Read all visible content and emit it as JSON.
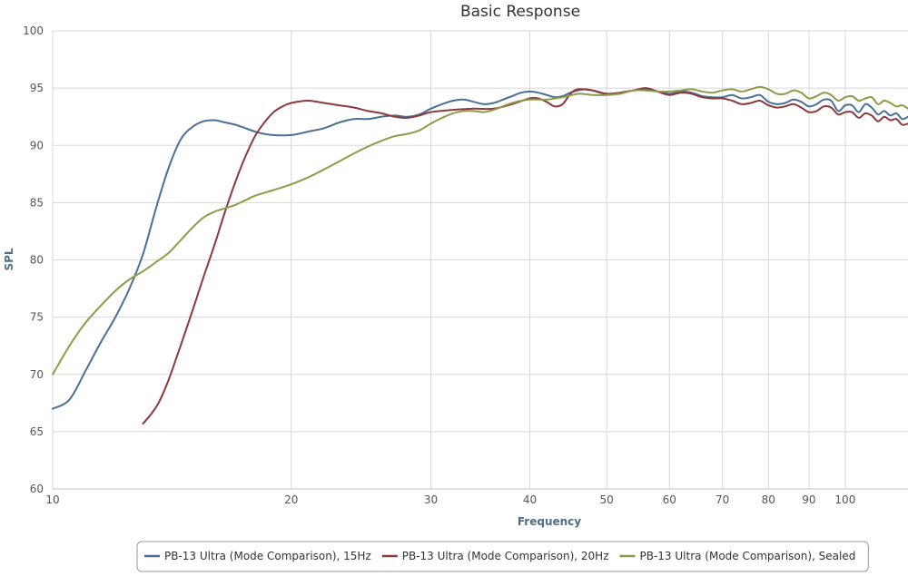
{
  "chart_data": {
    "type": "line",
    "title": "Basic Response",
    "xlabel": "Frequency",
    "ylabel": "SPL",
    "x_scale": "log",
    "xlim": [
      10,
      120
    ],
    "ylim": [
      60,
      100
    ],
    "x_ticks": [
      10,
      20,
      30,
      40,
      50,
      60,
      70,
      80,
      90,
      100
    ],
    "y_ticks": [
      60,
      65,
      70,
      75,
      80,
      85,
      90,
      95,
      100
    ],
    "grid": true,
    "legend_position": "bottom-right",
    "series": [
      {
        "name": "PB-13 Ultra (Mode Comparison), 15Hz",
        "color": "#4a6f94",
        "points": [
          [
            10,
            67.0
          ],
          [
            10.5,
            67.8
          ],
          [
            11,
            70.3
          ],
          [
            11.5,
            72.8
          ],
          [
            12,
            75.0
          ],
          [
            12.5,
            77.5
          ],
          [
            13,
            80.5
          ],
          [
            13.5,
            84.5
          ],
          [
            14,
            88.0
          ],
          [
            14.5,
            90.5
          ],
          [
            15,
            91.6
          ],
          [
            15.5,
            92.1
          ],
          [
            16,
            92.2
          ],
          [
            16.5,
            92.0
          ],
          [
            17,
            91.8
          ],
          [
            17.5,
            91.5
          ],
          [
            18,
            91.2
          ],
          [
            18.5,
            91.0
          ],
          [
            19,
            90.9
          ],
          [
            20,
            90.9
          ],
          [
            21,
            91.2
          ],
          [
            22,
            91.5
          ],
          [
            23,
            92.0
          ],
          [
            24,
            92.3
          ],
          [
            25,
            92.3
          ],
          [
            26,
            92.5
          ],
          [
            27,
            92.6
          ],
          [
            28,
            92.5
          ],
          [
            29,
            92.7
          ],
          [
            30,
            93.2
          ],
          [
            31,
            93.6
          ],
          [
            32,
            93.9
          ],
          [
            33,
            94.0
          ],
          [
            34,
            93.8
          ],
          [
            35,
            93.6
          ],
          [
            36,
            93.7
          ],
          [
            37,
            94.0
          ],
          [
            38,
            94.3
          ],
          [
            39,
            94.6
          ],
          [
            40,
            94.7
          ],
          [
            41,
            94.6
          ],
          [
            42,
            94.4
          ],
          [
            43,
            94.2
          ],
          [
            44,
            94.3
          ],
          [
            45,
            94.6
          ],
          [
            46,
            94.8
          ],
          [
            47,
            94.9
          ],
          [
            48,
            94.8
          ],
          [
            49,
            94.6
          ],
          [
            50,
            94.5
          ],
          [
            52,
            94.6
          ],
          [
            54,
            94.8
          ],
          [
            56,
            94.9
          ],
          [
            58,
            94.7
          ],
          [
            60,
            94.5
          ],
          [
            62,
            94.7
          ],
          [
            64,
            94.6
          ],
          [
            66,
            94.3
          ],
          [
            68,
            94.2
          ],
          [
            70,
            94.2
          ],
          [
            72,
            94.4
          ],
          [
            74,
            94.1
          ],
          [
            76,
            94.2
          ],
          [
            78,
            94.4
          ],
          [
            80,
            93.8
          ],
          [
            82,
            93.6
          ],
          [
            84,
            93.7
          ],
          [
            86,
            94.0
          ],
          [
            88,
            93.8
          ],
          [
            90,
            93.4
          ],
          [
            92,
            93.6
          ],
          [
            94,
            94.0
          ],
          [
            96,
            93.9
          ],
          [
            98,
            93.0
          ],
          [
            100,
            93.5
          ],
          [
            102,
            93.5
          ],
          [
            104,
            92.9
          ],
          [
            106,
            93.6
          ],
          [
            108,
            93.3
          ],
          [
            110,
            92.7
          ],
          [
            112,
            93.0
          ],
          [
            114,
            92.6
          ],
          [
            116,
            92.8
          ],
          [
            118,
            92.3
          ],
          [
            120,
            92.5
          ]
        ]
      },
      {
        "name": "PB-13 Ultra (Mode Comparison), 20Hz",
        "color": "#8b3a3a",
        "points": [
          [
            13,
            65.7
          ],
          [
            13.3,
            66.5
          ],
          [
            13.6,
            67.5
          ],
          [
            14,
            69.5
          ],
          [
            14.5,
            72.5
          ],
          [
            15,
            75.5
          ],
          [
            15.5,
            78.5
          ],
          [
            16,
            81.3
          ],
          [
            16.5,
            84.2
          ],
          [
            17,
            86.8
          ],
          [
            17.5,
            89.0
          ],
          [
            18,
            90.8
          ],
          [
            18.5,
            92.0
          ],
          [
            19,
            92.9
          ],
          [
            19.5,
            93.4
          ],
          [
            20,
            93.7
          ],
          [
            21,
            93.9
          ],
          [
            22,
            93.7
          ],
          [
            23,
            93.5
          ],
          [
            24,
            93.3
          ],
          [
            25,
            93.0
          ],
          [
            26,
            92.8
          ],
          [
            27,
            92.5
          ],
          [
            28,
            92.4
          ],
          [
            29,
            92.6
          ],
          [
            30,
            92.9
          ],
          [
            32,
            93.1
          ],
          [
            34,
            93.2
          ],
          [
            36,
            93.2
          ],
          [
            38,
            93.6
          ],
          [
            40,
            94.1
          ],
          [
            41,
            94.1
          ],
          [
            42,
            93.8
          ],
          [
            43,
            93.4
          ],
          [
            44,
            93.6
          ],
          [
            45,
            94.5
          ],
          [
            46,
            94.9
          ],
          [
            48,
            94.8
          ],
          [
            50,
            94.5
          ],
          [
            52,
            94.6
          ],
          [
            54,
            94.8
          ],
          [
            56,
            95.0
          ],
          [
            58,
            94.7
          ],
          [
            60,
            94.4
          ],
          [
            62,
            94.6
          ],
          [
            64,
            94.5
          ],
          [
            66,
            94.2
          ],
          [
            68,
            94.1
          ],
          [
            70,
            94.1
          ],
          [
            72,
            93.9
          ],
          [
            74,
            93.6
          ],
          [
            76,
            93.7
          ],
          [
            78,
            93.9
          ],
          [
            80,
            93.5
          ],
          [
            82,
            93.3
          ],
          [
            84,
            93.4
          ],
          [
            86,
            93.6
          ],
          [
            88,
            93.3
          ],
          [
            90,
            92.9
          ],
          [
            92,
            93.0
          ],
          [
            94,
            93.4
          ],
          [
            96,
            93.3
          ],
          [
            98,
            92.7
          ],
          [
            100,
            92.9
          ],
          [
            102,
            92.9
          ],
          [
            104,
            92.4
          ],
          [
            106,
            92.8
          ],
          [
            108,
            92.6
          ],
          [
            110,
            92.1
          ],
          [
            112,
            92.5
          ],
          [
            114,
            92.2
          ],
          [
            116,
            92.3
          ],
          [
            118,
            91.8
          ],
          [
            120,
            91.9
          ]
        ]
      },
      {
        "name": "PB-13 Ultra (Mode Comparison), Sealed",
        "color": "#8f9a48",
        "points": [
          [
            10,
            70.0
          ],
          [
            10.5,
            72.5
          ],
          [
            11,
            74.5
          ],
          [
            11.5,
            76.0
          ],
          [
            12,
            77.3
          ],
          [
            12.5,
            78.3
          ],
          [
            13,
            79.0
          ],
          [
            13.5,
            79.8
          ],
          [
            14,
            80.6
          ],
          [
            14.5,
            81.7
          ],
          [
            15,
            82.8
          ],
          [
            15.5,
            83.7
          ],
          [
            16,
            84.2
          ],
          [
            16.5,
            84.5
          ],
          [
            17,
            84.8
          ],
          [
            17.5,
            85.2
          ],
          [
            18,
            85.6
          ],
          [
            19,
            86.1
          ],
          [
            20,
            86.6
          ],
          [
            21,
            87.2
          ],
          [
            22,
            87.9
          ],
          [
            23,
            88.6
          ],
          [
            24,
            89.3
          ],
          [
            25,
            89.9
          ],
          [
            26,
            90.4
          ],
          [
            27,
            90.8
          ],
          [
            28,
            91.0
          ],
          [
            29,
            91.3
          ],
          [
            30,
            91.9
          ],
          [
            31,
            92.4
          ],
          [
            32,
            92.8
          ],
          [
            33,
            93.0
          ],
          [
            34,
            93.0
          ],
          [
            35,
            92.9
          ],
          [
            36,
            93.1
          ],
          [
            38,
            93.7
          ],
          [
            40,
            94.0
          ],
          [
            42,
            94.0
          ],
          [
            44,
            94.2
          ],
          [
            46,
            94.5
          ],
          [
            48,
            94.4
          ],
          [
            50,
            94.4
          ],
          [
            52,
            94.5
          ],
          [
            54,
            94.8
          ],
          [
            56,
            94.8
          ],
          [
            58,
            94.7
          ],
          [
            60,
            94.7
          ],
          [
            62,
            94.8
          ],
          [
            64,
            94.9
          ],
          [
            66,
            94.7
          ],
          [
            68,
            94.6
          ],
          [
            70,
            94.8
          ],
          [
            72,
            94.9
          ],
          [
            74,
            94.7
          ],
          [
            76,
            94.9
          ],
          [
            78,
            95.1
          ],
          [
            80,
            94.9
          ],
          [
            82,
            94.5
          ],
          [
            84,
            94.5
          ],
          [
            86,
            94.8
          ],
          [
            88,
            94.6
          ],
          [
            90,
            94.1
          ],
          [
            92,
            94.3
          ],
          [
            94,
            94.6
          ],
          [
            96,
            94.4
          ],
          [
            98,
            93.9
          ],
          [
            100,
            94.2
          ],
          [
            102,
            94.3
          ],
          [
            104,
            93.9
          ],
          [
            106,
            94.1
          ],
          [
            108,
            94.2
          ],
          [
            110,
            93.6
          ],
          [
            112,
            93.9
          ],
          [
            114,
            93.7
          ],
          [
            116,
            93.4
          ],
          [
            118,
            93.5
          ],
          [
            120,
            93.2
          ]
        ]
      }
    ]
  }
}
